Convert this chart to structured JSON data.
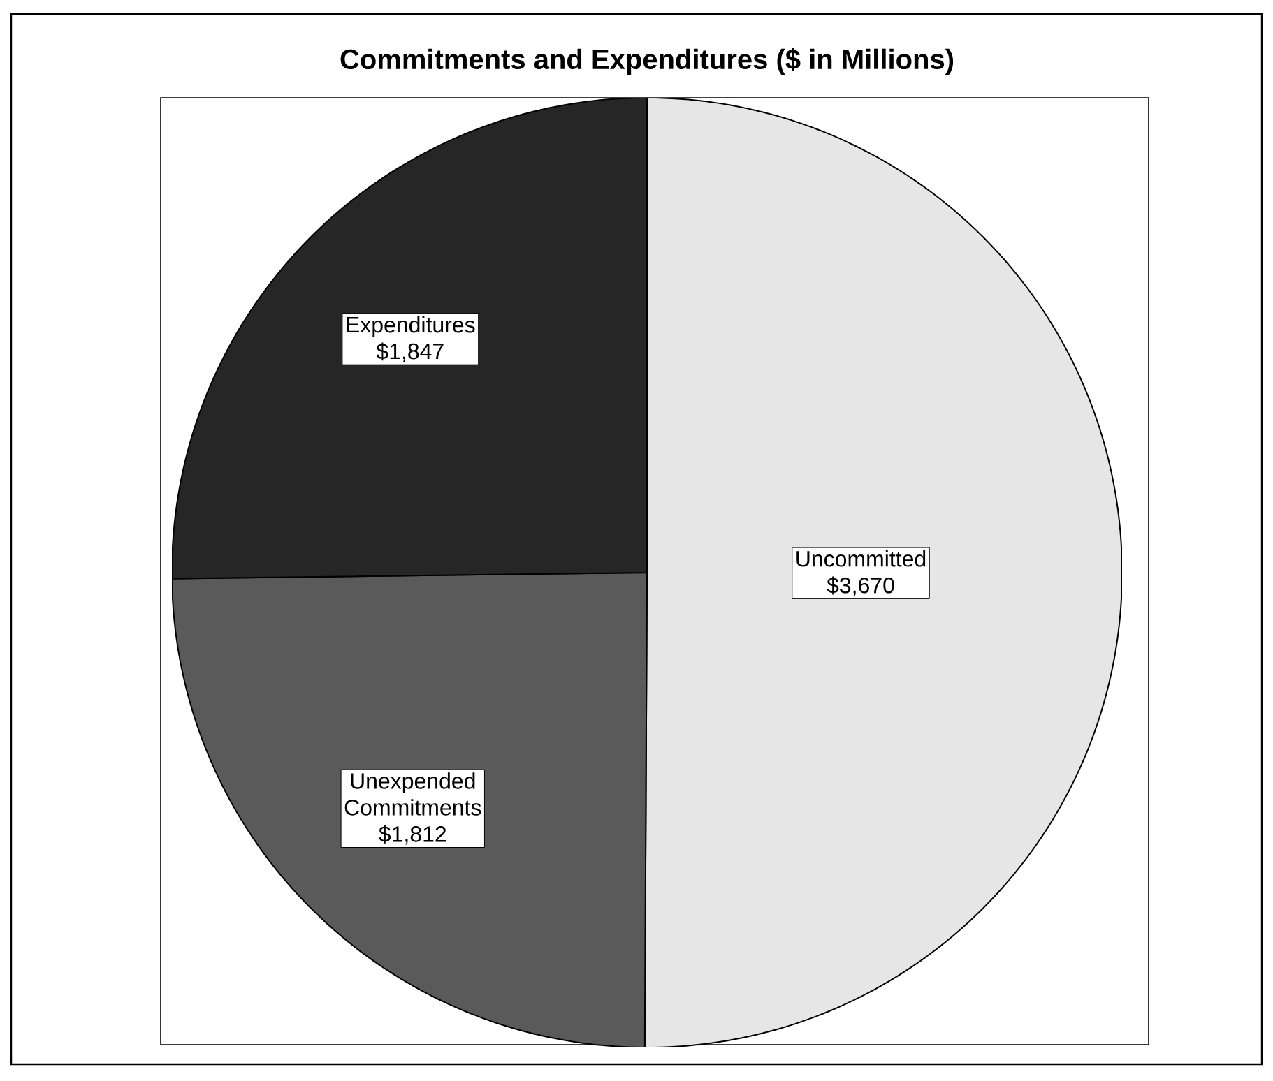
{
  "chart_data": {
    "type": "pie",
    "title": "Commitments and Expenditures ($ in Millions)",
    "categories": [
      "Uncommitted",
      "Unexpended Commitments",
      "Expenditures"
    ],
    "values": [
      3670,
      1812,
      1847
    ],
    "value_labels": [
      "$3,670",
      "$1,812",
      "$1,847"
    ],
    "colors": [
      "#e6e6e6",
      "#5a5a5a",
      "#262626"
    ]
  }
}
